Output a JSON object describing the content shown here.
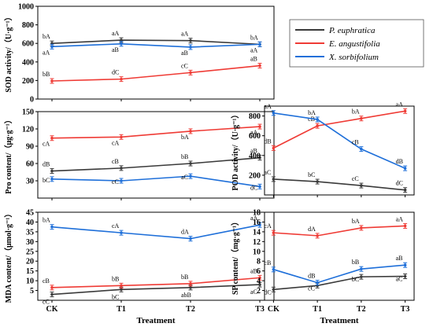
{
  "legend": [
    {
      "name": "P. euphratica",
      "color": "#3a3a3a"
    },
    {
      "name": "E. angustifolia",
      "color": "#ef3b35"
    },
    {
      "name": "X. sorbifolium",
      "color": "#1e6fd9"
    }
  ],
  "chart_data": [
    {
      "id": "sod",
      "type": "line",
      "ylabel": "SOD activity/（U·g⁻¹）",
      "xlabel": "",
      "categories": [
        "CK",
        "T1",
        "T2",
        "T3"
      ],
      "ylim": [
        0,
        1000
      ],
      "yticks": [
        0,
        200,
        400,
        600,
        800,
        1000
      ],
      "series": [
        {
          "name": "P. euphratica",
          "values": [
            600,
            635,
            630,
            590
          ],
          "labels": [
            "bA",
            "aA",
            "aA",
            "bA"
          ]
        },
        {
          "name": "E. angustifolia",
          "values": [
            195,
            215,
            285,
            360
          ],
          "labels": [
            "bB",
            "dC",
            "cC",
            "aB"
          ]
        },
        {
          "name": "X. sorbifolium",
          "values": [
            565,
            595,
            560,
            590
          ],
          "labels": [
            "aA",
            "aB",
            "aB",
            "aA"
          ]
        }
      ]
    },
    {
      "id": "pro",
      "type": "line",
      "ylabel": "Pro content/（μg·g⁻¹）",
      "xlabel": "",
      "categories": [
        "CK",
        "T1",
        "T2",
        "T3"
      ],
      "ylim": [
        0,
        150
      ],
      "yticks": [
        30,
        60,
        90,
        120,
        150
      ],
      "series": [
        {
          "name": "P. euphratica",
          "values": [
            47,
            52,
            60,
            70
          ],
          "labels": [
            "dB",
            "cB",
            "bB",
            "aB"
          ]
        },
        {
          "name": "E. angustifolia",
          "values": [
            104,
            106,
            116,
            124
          ],
          "labels": [
            "cA",
            "cA",
            "bA",
            "aA"
          ]
        },
        {
          "name": "X. sorbifolium",
          "values": [
            33,
            30,
            38,
            20
          ],
          "labels": [
            "bC",
            "cC",
            "aC",
            "dC"
          ]
        }
      ]
    },
    {
      "id": "mda",
      "type": "line",
      "ylabel": "MDA content/（μmol·g⁻¹）",
      "xlabel": "Treatment",
      "categories": [
        "CK",
        "T1",
        "T2",
        "T3"
      ],
      "ylim": [
        0,
        45
      ],
      "yticks": [
        5,
        10,
        15,
        20,
        25,
        30,
        35,
        40,
        45
      ],
      "series": [
        {
          "name": "P. euphratica",
          "values": [
            3,
            5.5,
            6.5,
            8
          ],
          "labels": [
            "cC",
            "bC",
            "abB",
            "aC"
          ]
        },
        {
          "name": "E. angustifolia",
          "values": [
            6.5,
            7.5,
            8.5,
            11.5
          ],
          "labels": [
            "cB",
            "bB",
            "bB",
            "aB"
          ]
        },
        {
          "name": "X. sorbifolium",
          "values": [
            37.5,
            34.5,
            31.5,
            38.5
          ],
          "labels": [
            "bA",
            "cA",
            "dA",
            "aA"
          ]
        }
      ]
    },
    {
      "id": "pod",
      "type": "line",
      "ylabel": "POD activity/（U·g⁻¹）",
      "xlabel": "",
      "categories": [
        "CK",
        "T1",
        "T2",
        "T3"
      ],
      "ylim": [
        0,
        900
      ],
      "yticks": [
        200,
        400,
        600,
        800
      ],
      "series": [
        {
          "name": "P. euphratica",
          "values": [
            160,
            135,
            95,
            50
          ],
          "labels": [
            "aC",
            "bC",
            "cC",
            "dC"
          ]
        },
        {
          "name": "E. angustifolia",
          "values": [
            475,
            700,
            775,
            850
          ],
          "labels": [
            "dB",
            "cB",
            "bA",
            "aA"
          ]
        },
        {
          "name": "X. sorbifolium",
          "values": [
            830,
            765,
            465,
            270
          ],
          "labels": [
            "aA",
            "bA",
            "cB",
            "dB"
          ]
        }
      ]
    },
    {
      "id": "sp",
      "type": "line",
      "ylabel": "SP content/（mg·g⁻¹）",
      "xlabel": "Treatment",
      "categories": [
        "CK",
        "T1",
        "T2",
        "T3"
      ],
      "ylim": [
        0,
        18
      ],
      "yticks": [
        2,
        4,
        6,
        8,
        10,
        12,
        14,
        16,
        18
      ],
      "series": [
        {
          "name": "P. euphratica",
          "values": [
            2.2,
            3.0,
            4.8,
            4.9
          ],
          "labels": [
            "dC",
            "cC",
            "bC",
            "aC"
          ]
        },
        {
          "name": "E. angustifolia",
          "values": [
            13.8,
            13.2,
            14.8,
            15.2
          ],
          "labels": [
            "cA",
            "dA",
            "bA",
            "aA"
          ]
        },
        {
          "name": "X. sorbifolium",
          "values": [
            6.3,
            3.6,
            6.4,
            7.2
          ],
          "labels": [
            "cB",
            "dB",
            "bB",
            "aB"
          ]
        }
      ]
    }
  ]
}
